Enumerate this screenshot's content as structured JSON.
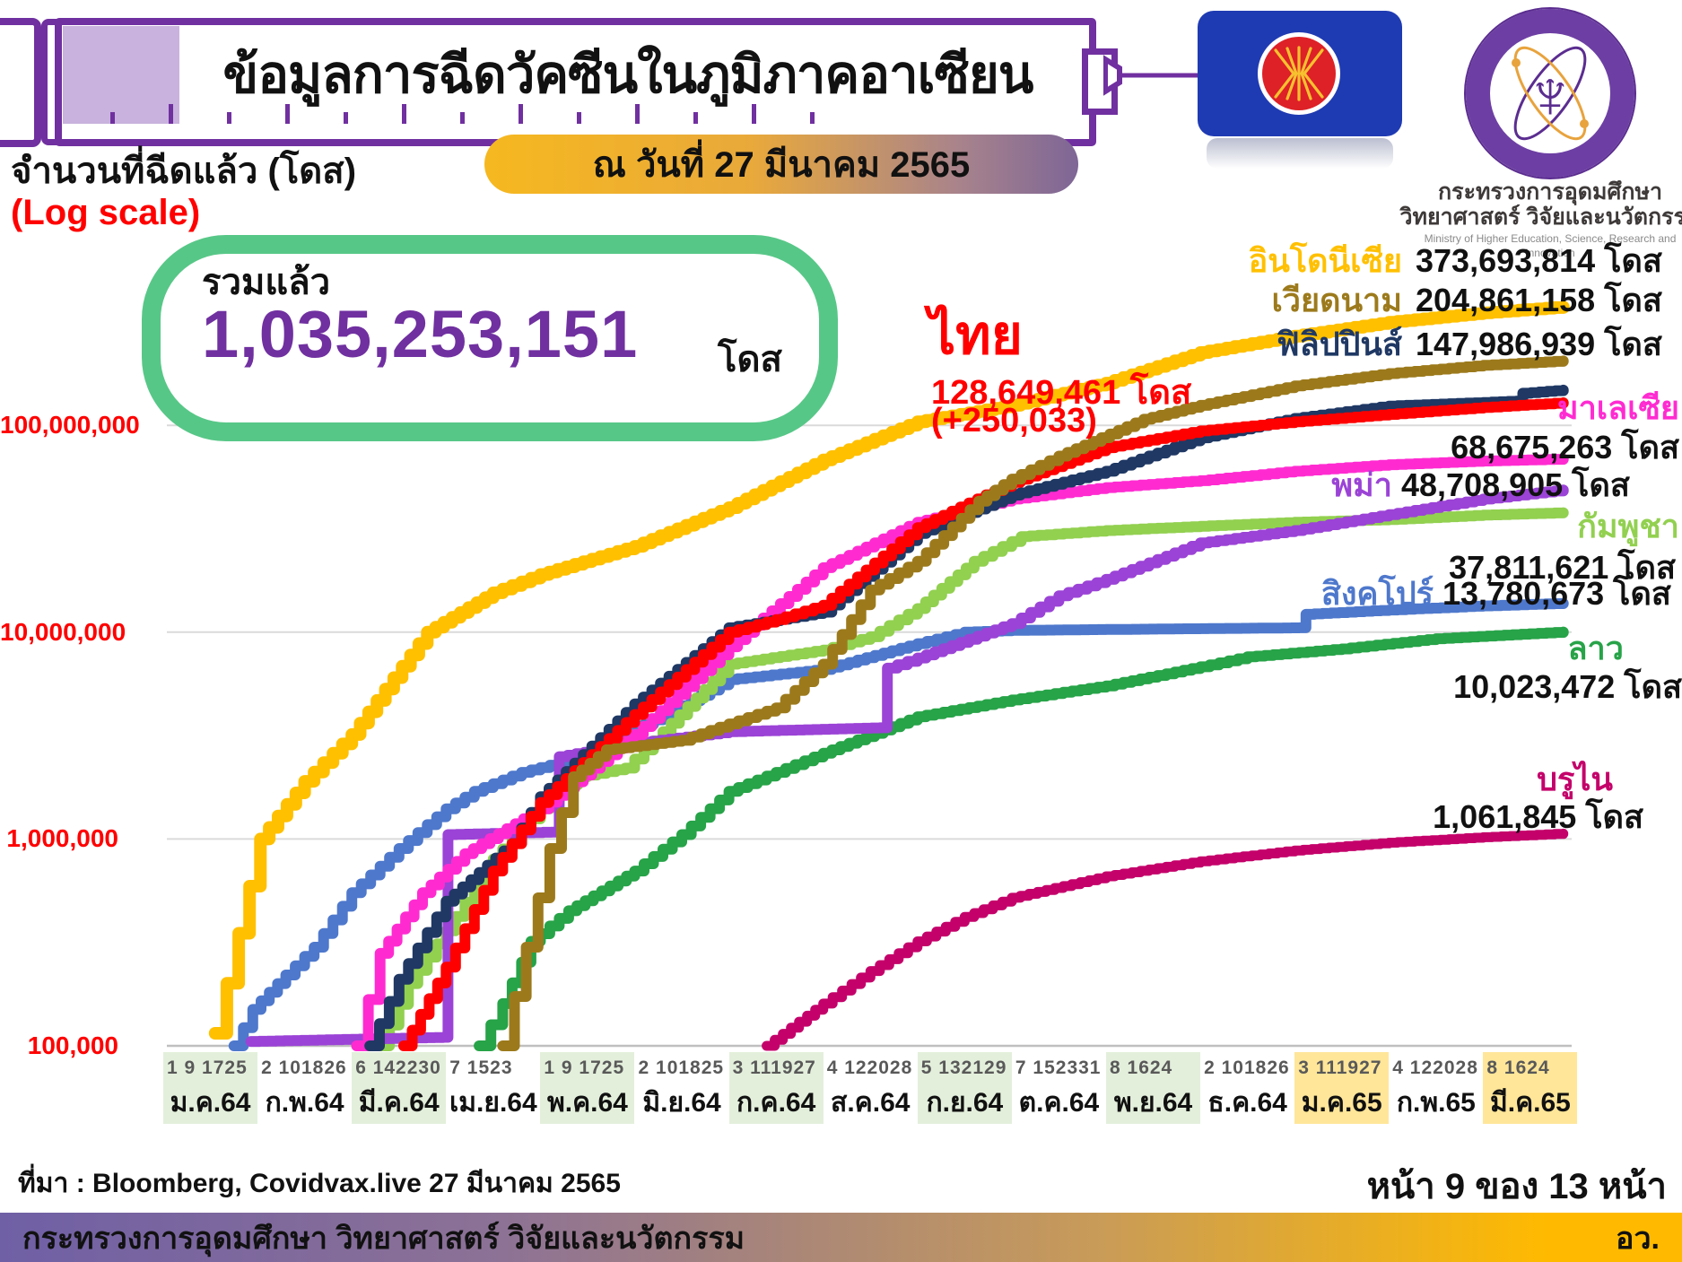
{
  "header": {
    "title": "ข้อมูลการฉีดวัคซีนในภูมิภาคอาเซียน",
    "date_badge": "ณ วันที่ 27 มีนาคม 2565",
    "axis_title": "จำนวนที่ฉีดแล้ว (โดส)",
    "axis_subtitle": "(Log scale)"
  },
  "summary": {
    "label": "รวมแล้ว",
    "value": "1,035,253,151",
    "unit": "โดส"
  },
  "thailand_callout": {
    "name": "ไทย",
    "value": "128,649,461 โดส",
    "delta": "(+250,033)"
  },
  "logos": {
    "asean_flag": "asean-flag",
    "ministry_line1": "กระทรวงการอุดมศึกษา",
    "ministry_line2": "วิทยาศาสตร์ วิจัยและนวัตกรรม",
    "ministry_line3": "Ministry of Higher Education, Science, Research and Innovation"
  },
  "footer": {
    "source": "ที่มา : Bloomberg, Covidvax.live 27 มีนาคม 2565",
    "page": "หน้า 9 ของ 13 หน้า",
    "ministry_bar": "กระทรวงการอุดมศึกษา วิทยาศาสตร์ วิจัยและนวัตกรรม",
    "ministry_abbr": "อว."
  },
  "chart_data": {
    "type": "line",
    "title": "ข้อมูลการฉีดวัคซีนในภูมิภาคอาเซียน",
    "ylabel": "จำนวนที่ฉีดแล้ว (โดส) (Log scale)",
    "y_scale": "log",
    "ylim": [
      100000,
      400000000
    ],
    "grid": "horizontal",
    "y_ticks": [
      "100,000,000",
      "10,000,000",
      "1,000,000",
      "100,000"
    ],
    "x_months": [
      {
        "days": "1  9 1725",
        "label": "ม.ค.64",
        "shade": "green"
      },
      {
        "days": "2 101826",
        "label": "ก.พ.64",
        "shade": "none"
      },
      {
        "days": "6 142230",
        "label": "มี.ค.64",
        "shade": "green"
      },
      {
        "days": "7 1523",
        "label": "เม.ย.64",
        "shade": "none"
      },
      {
        "days": "1  9 1725",
        "label": "พ.ค.64",
        "shade": "green"
      },
      {
        "days": "2 101825",
        "label": "มิ.ย.64",
        "shade": "none"
      },
      {
        "days": "3 111927",
        "label": "ก.ค.64",
        "shade": "green"
      },
      {
        "days": "4 122028",
        "label": "ส.ค.64",
        "shade": "none"
      },
      {
        "days": "5 132129",
        "label": "ก.ย.64",
        "shade": "green"
      },
      {
        "days": "7 152331",
        "label": "ต.ค.64",
        "shade": "none"
      },
      {
        "days": "8 1624",
        "label": "พ.ย.64",
        "shade": "green"
      },
      {
        "days": "2 101826",
        "label": "ธ.ค.64",
        "shade": "none"
      },
      {
        "days": "3 111927",
        "label": "ม.ค.65",
        "shade": "yellow"
      },
      {
        "days": "4 122028",
        "label": "ก.พ.65",
        "shade": "none"
      },
      {
        "days": "8 1624",
        "label": "มี.ค.65",
        "shade": "yellow"
      }
    ],
    "x_unit": "months_since_jan_2021",
    "series": [
      {
        "name": "บรูไน",
        "label_value": "1,061,845 โดส",
        "final_doses": 1061845,
        "color": "#C4006A",
        "width": 11,
        "points": [
          [
            6.4,
            100000
          ],
          [
            7.0,
            160000
          ],
          [
            7.5,
            230000
          ],
          [
            8.0,
            320000
          ],
          [
            8.5,
            420000
          ],
          [
            9.0,
            520000
          ],
          [
            10.0,
            660000
          ],
          [
            11.0,
            780000
          ],
          [
            12.0,
            880000
          ],
          [
            13.0,
            960000
          ],
          [
            14.0,
            1020000
          ],
          [
            14.85,
            1061845
          ]
        ]
      },
      {
        "name": "ลาว",
        "label_value": "10,023,472 โดส",
        "final_doses": 10023472,
        "color": "#27A348",
        "width": 12,
        "points": [
          [
            3.35,
            100000
          ],
          [
            3.6,
            160000
          ],
          [
            3.9,
            320000
          ],
          [
            4.3,
            450000
          ],
          [
            5.0,
            700000
          ],
          [
            5.5,
            1050000
          ],
          [
            6.0,
            1700000
          ],
          [
            6.5,
            2100000
          ],
          [
            7.0,
            2600000
          ],
          [
            8.0,
            3900000
          ],
          [
            9.0,
            4700000
          ],
          [
            10.0,
            5500000
          ],
          [
            11.0,
            6800000
          ],
          [
            11.5,
            7600000
          ],
          [
            12.5,
            8300000
          ],
          [
            13.5,
            9300000
          ],
          [
            14.85,
            10023472
          ]
        ]
      },
      {
        "name": "สิงคโปร์",
        "label_value": "13,780,673 โดส",
        "final_doses": 13780673,
        "color": "#4E78CC",
        "width": 12,
        "points": [
          [
            0.75,
            100000
          ],
          [
            0.95,
            150000
          ],
          [
            1.3,
            220000
          ],
          [
            1.6,
            300000
          ],
          [
            2.0,
            550000
          ],
          [
            2.5,
            900000
          ],
          [
            3.0,
            1400000
          ],
          [
            3.3,
            1700000
          ],
          [
            3.8,
            2100000
          ],
          [
            4.3,
            2400000
          ],
          [
            5.0,
            3400000
          ],
          [
            5.5,
            4400000
          ],
          [
            6.0,
            5900000
          ],
          [
            7.0,
            6600000
          ],
          [
            8.0,
            8800000
          ],
          [
            8.5,
            10000000
          ],
          [
            9.0,
            10200000
          ],
          [
            10.0,
            10300000
          ],
          [
            11.0,
            10400000
          ],
          [
            12.05,
            10500000
          ],
          [
            12.12,
            12200000
          ],
          [
            13.0,
            12800000
          ],
          [
            14.0,
            13400000
          ],
          [
            14.85,
            13780673
          ]
        ]
      },
      {
        "name": "กัมพูชา",
        "label_value": "37,811,621 โดส",
        "final_doses": 37811621,
        "color": "#92D050",
        "width": 12,
        "points": [
          [
            2.3,
            100000
          ],
          [
            2.6,
            200000
          ],
          [
            3.0,
            360000
          ],
          [
            3.5,
            800000
          ],
          [
            4.0,
            1400000
          ],
          [
            4.4,
            2000000
          ],
          [
            4.9,
            2200000
          ],
          [
            5.3,
            3300000
          ],
          [
            6.0,
            7000000
          ],
          [
            7.0,
            8200000
          ],
          [
            7.5,
            9500000
          ],
          [
            8.0,
            13000000
          ],
          [
            8.6,
            22000000
          ],
          [
            9.1,
            29000000
          ],
          [
            10.0,
            31000000
          ],
          [
            11.0,
            32500000
          ],
          [
            12.0,
            34000000
          ],
          [
            13.0,
            35000000
          ],
          [
            14.0,
            36800000
          ],
          [
            14.85,
            37811621
          ]
        ]
      },
      {
        "name": "พม่า",
        "label_value": "48,708,905 โดส",
        "final_doses": 48708905,
        "color": "#9B43D6",
        "width": 12,
        "points": [
          [
            0.93,
            105000
          ],
          [
            2.97,
            110000
          ],
          [
            3.02,
            1050000
          ],
          [
            4.12,
            1080000
          ],
          [
            4.2,
            2500000
          ],
          [
            5.0,
            2900000
          ],
          [
            6.0,
            3300000
          ],
          [
            7.6,
            3450000
          ],
          [
            7.68,
            6700000
          ],
          [
            8.0,
            7500000
          ],
          [
            9.0,
            11000000
          ],
          [
            9.5,
            15000000
          ],
          [
            10.0,
            18000000
          ],
          [
            11.0,
            27000000
          ],
          [
            12.0,
            31000000
          ],
          [
            13.0,
            37000000
          ],
          [
            14.0,
            44000000
          ],
          [
            14.85,
            48708905
          ]
        ]
      },
      {
        "name": "มาเลเซีย",
        "label_value": "68,675,263 โดส",
        "final_doses": 68675263,
        "color": "#FF2BD1",
        "width": 12,
        "points": [
          [
            2.05,
            100000
          ],
          [
            2.3,
            280000
          ],
          [
            2.75,
            550000
          ],
          [
            3.2,
            850000
          ],
          [
            4.0,
            1400000
          ],
          [
            5.0,
            3200000
          ],
          [
            6.0,
            8500000
          ],
          [
            7.0,
            20500000
          ],
          [
            8.0,
            34000000
          ],
          [
            9.0,
            44000000
          ],
          [
            10.0,
            50000000
          ],
          [
            11.0,
            54000000
          ],
          [
            12.0,
            60000000
          ],
          [
            13.0,
            64500000
          ],
          [
            14.0,
            67200000
          ],
          [
            14.85,
            68675263
          ]
        ]
      },
      {
        "name": "ฟิลิปปินส์",
        "label_value": "147,986,939 โดส",
        "final_doses": 147986939,
        "color": "#1F3864",
        "width": 12,
        "points": [
          [
            2.19,
            100000
          ],
          [
            2.5,
            210000
          ],
          [
            3.0,
            500000
          ],
          [
            3.7,
            950000
          ],
          [
            4.0,
            1600000
          ],
          [
            5.0,
            4500000
          ],
          [
            6.0,
            10500000
          ],
          [
            7.0,
            12500000
          ],
          [
            8.0,
            30000000
          ],
          [
            9.0,
            46000000
          ],
          [
            10.0,
            60000000
          ],
          [
            11.0,
            87000000
          ],
          [
            12.0,
            108000000
          ],
          [
            13.0,
            124000000
          ],
          [
            14.0,
            129000000
          ],
          [
            14.35,
            131000000
          ],
          [
            14.42,
            143000000
          ],
          [
            14.85,
            147986939
          ]
        ]
      },
      {
        "name": "ไทย",
        "label_value": "128,649,461 โดส",
        "final_doses": 128649461,
        "color": "#FF0000",
        "width": 12,
        "points": [
          [
            2.55,
            100000
          ],
          [
            3.0,
            240000
          ],
          [
            3.5,
            700000
          ],
          [
            4.0,
            1500000
          ],
          [
            5.0,
            4000000
          ],
          [
            6.0,
            10000000
          ],
          [
            6.5,
            11500000
          ],
          [
            7.0,
            13500000
          ],
          [
            8.0,
            32000000
          ],
          [
            9.0,
            53000000
          ],
          [
            10.0,
            78000000
          ],
          [
            11.0,
            94000000
          ],
          [
            12.0,
            104000000
          ],
          [
            13.0,
            113000000
          ],
          [
            14.0,
            122000000
          ],
          [
            14.85,
            128649461
          ]
        ]
      },
      {
        "name": "เวียดนาม",
        "label_value": "204,861,158 โดส",
        "final_doses": 204861158,
        "color": "#9C7A1C",
        "width": 12,
        "points": [
          [
            3.6,
            100000
          ],
          [
            3.85,
            300000
          ],
          [
            4.1,
            900000
          ],
          [
            4.35,
            2000000
          ],
          [
            4.7,
            2700000
          ],
          [
            5.5,
            3000000
          ],
          [
            6.0,
            3600000
          ],
          [
            6.5,
            4300000
          ],
          [
            7.0,
            7000000
          ],
          [
            7.5,
            16000000
          ],
          [
            8.0,
            22000000
          ],
          [
            8.65,
            43000000
          ],
          [
            9.0,
            55000000
          ],
          [
            9.5,
            71000000
          ],
          [
            10.4,
            107000000
          ],
          [
            11.0,
            125000000
          ],
          [
            12.0,
            155000000
          ],
          [
            13.0,
            178000000
          ],
          [
            14.0,
            195000000
          ],
          [
            14.85,
            204861158
          ]
        ]
      },
      {
        "name": "อินโดนีเซีย",
        "label_value": "373,693,814 โดส",
        "final_doses": 373693814,
        "color": "#FFC000",
        "width": 14,
        "points": [
          [
            0.55,
            115000
          ],
          [
            0.8,
            350000
          ],
          [
            1.03,
            1000000
          ],
          [
            1.5,
            1900000
          ],
          [
            2.0,
            3200000
          ],
          [
            2.8,
            10000000
          ],
          [
            3.5,
            15500000
          ],
          [
            4.0,
            19000000
          ],
          [
            5.0,
            26000000
          ],
          [
            6.0,
            40000000
          ],
          [
            7.0,
            68000000
          ],
          [
            8.0,
            104000000
          ],
          [
            9.0,
            125000000
          ],
          [
            10.0,
            160000000
          ],
          [
            11.0,
            225000000
          ],
          [
            12.0,
            270000000
          ],
          [
            13.0,
            315000000
          ],
          [
            14.0,
            350000000
          ],
          [
            14.85,
            373693814
          ]
        ]
      }
    ]
  }
}
